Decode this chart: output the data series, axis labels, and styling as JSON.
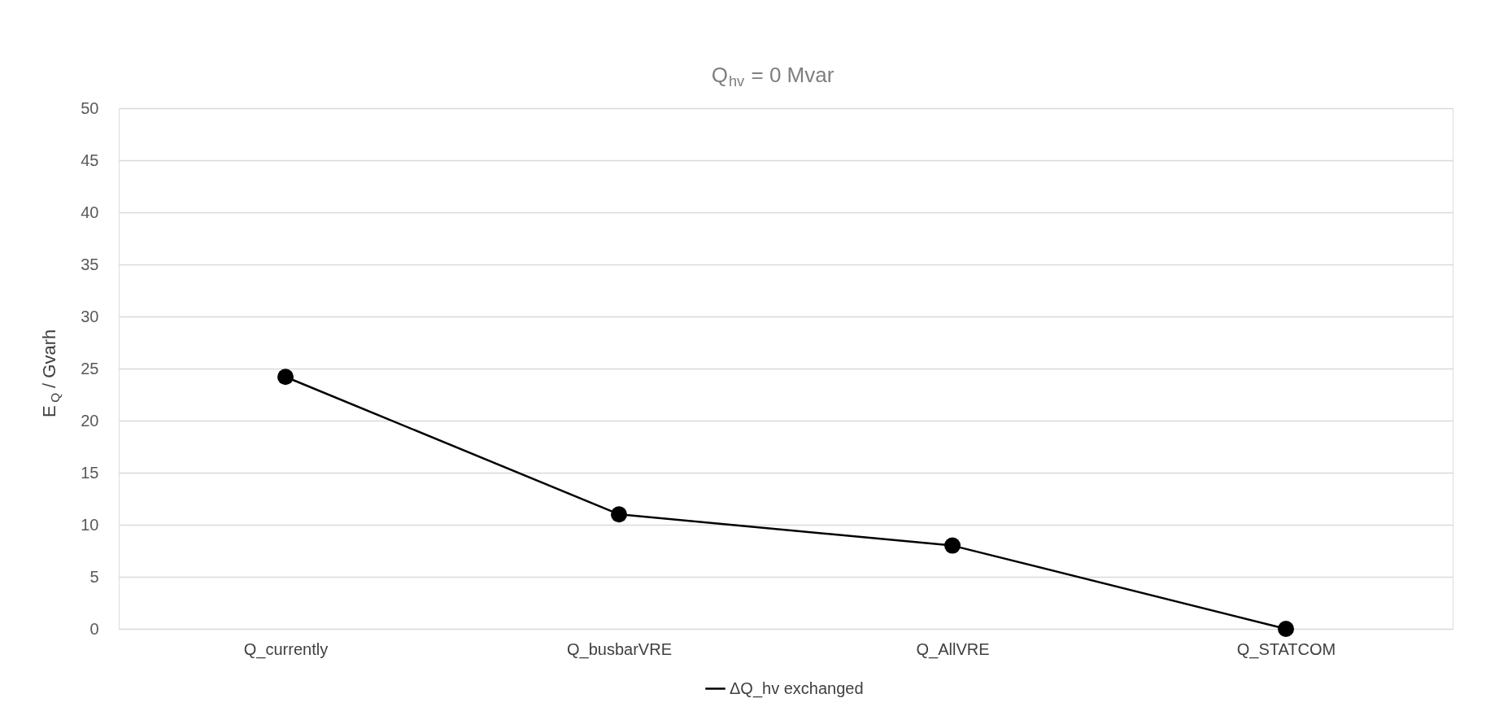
{
  "chart_data": {
    "type": "line",
    "title": "Q$_{hv}$ = 0 Mvar",
    "ylabel": "E$_{Q}$ / Gvarh",
    "categories": [
      "Q_currently",
      "Q_busbarVRE",
      "Q_AllVRE",
      "Q_STATCOM"
    ],
    "series": [
      {
        "name": "ΔQ_hv exchanged",
        "color": "#000000",
        "values": [
          24.2,
          11,
          8,
          0
        ]
      }
    ],
    "ylim": [
      0,
      50
    ],
    "yticks": [
      0,
      5,
      10,
      15,
      20,
      25,
      30,
      35,
      40,
      45,
      50
    ],
    "grid": "y",
    "legend": "bottom",
    "marker": "circle",
    "line_style": "solid"
  }
}
